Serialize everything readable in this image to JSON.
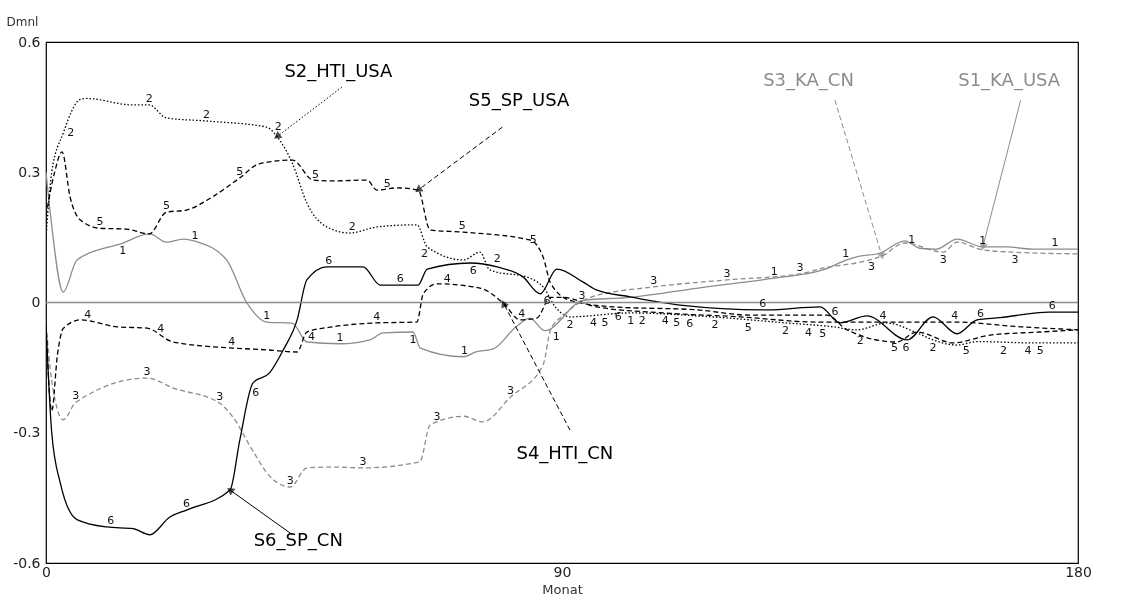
{
  "chart_data": {
    "type": "line",
    "xlabel": "Monat",
    "ylabel": "Dmnl",
    "xlim": [
      0,
      180
    ],
    "xticks": [
      0,
      90,
      180
    ],
    "ylim": [
      -0.6,
      0.6
    ],
    "yticks": [
      -0.6,
      -0.3,
      0,
      0.3,
      0.6
    ],
    "legend": false,
    "grid": false,
    "ref_lines": [
      {
        "axis": "y",
        "value": 0,
        "color": "#8c8c8c"
      }
    ],
    "series": [
      {
        "name": "S1_KA_USA",
        "color": "#8c8c8c",
        "line_style": "solid",
        "x": [
          0,
          0.8,
          3,
          5.4,
          13.4,
          18.1,
          21,
          24,
          26.3,
          31.5,
          35,
          38.5,
          43,
          45.5,
          51.3,
          56.5,
          58.8,
          64,
          65.3,
          72.8,
          75,
          78,
          82,
          84.4,
          87,
          93.7,
          102,
          114.6,
          127,
          135.5,
          139.7,
          141.4,
          145.5,
          149.8,
          152.4,
          155.3,
          158.9,
          163.4,
          167.6,
          172,
          180
        ],
        "values": [
          0.3,
          0.2,
          0.024,
          0.098,
          0.137,
          0.158,
          0.139,
          0.146,
          0.14,
          0.098,
          0.0,
          -0.045,
          -0.048,
          -0.091,
          -0.095,
          -0.086,
          -0.07,
          -0.068,
          -0.105,
          -0.125,
          -0.114,
          -0.107,
          -0.056,
          -0.036,
          -0.065,
          0.005,
          0.012,
          0.035,
          0.056,
          0.075,
          0.098,
          0.105,
          0.114,
          0.142,
          0.125,
          0.123,
          0.146,
          0.128,
          0.128,
          0.123,
          0.123
        ]
      },
      {
        "name": "S2_HTI_USA",
        "color": "#000000",
        "line_style": "dotted",
        "x": [
          0,
          1,
          3,
          6,
          7,
          15.2,
          18,
          21,
          28,
          38.5,
          40.3,
          43,
          45.5,
          49,
          53,
          57.7,
          64.7,
          66.5,
          72.8,
          75.7,
          77.4,
          84.4,
          86.7,
          89,
          91.4,
          102,
          116,
          129,
          137.3,
          141.4,
          146.6,
          151.9,
          154.7,
          158.9,
          162.4,
          172,
          180
        ],
        "values": [
          0.15,
          0.3,
          0.39,
          0.468,
          0.47,
          0.455,
          0.455,
          0.425,
          0.418,
          0.404,
          0.382,
          0.32,
          0.229,
          0.174,
          0.16,
          0.174,
          0.179,
          0.128,
          0.098,
          0.116,
          0.075,
          0.056,
          0.036,
          -0.013,
          -0.033,
          -0.024,
          -0.033,
          -0.047,
          -0.056,
          -0.063,
          -0.047,
          -0.07,
          -0.086,
          -0.098,
          -0.09,
          -0.093,
          -0.093
        ]
      },
      {
        "name": "S3_KA_CN",
        "color": "#8c8c8c",
        "line_style": "dashed",
        "x": [
          0,
          1,
          3,
          5.2,
          17.6,
          22.2,
          30.3,
          32.6,
          36,
          39,
          42.6,
          45.5,
          50,
          55.3,
          65.2,
          67,
          72.8,
          76.2,
          81,
          86.7,
          88,
          90.3,
          95,
          106,
          118.8,
          131.5,
          135.5,
          143.7,
          145.8,
          149.8,
          156.5,
          158.9,
          163.4,
          168.7,
          180
        ],
        "values": [
          -0.05,
          -0.18,
          -0.27,
          -0.23,
          -0.174,
          -0.197,
          -0.232,
          -0.264,
          -0.34,
          -0.4,
          -0.425,
          -0.381,
          -0.379,
          -0.381,
          -0.367,
          -0.282,
          -0.262,
          -0.275,
          -0.218,
          -0.144,
          -0.063,
          -0.029,
          0.012,
          0.036,
          0.052,
          0.066,
          0.079,
          0.098,
          0.107,
          0.137,
          0.116,
          0.139,
          0.121,
          0.116,
          0.112
        ]
      },
      {
        "name": "S4_HTI_CN",
        "color": "#000000",
        "line_style": "dashed",
        "x": [
          0,
          1,
          2,
          3,
          6,
          12.4,
          17.6,
          22.2,
          32.6,
          38.5,
          43.8,
          45.5,
          50,
          57.7,
          64.7,
          65.8,
          68.2,
          75.7,
          79.8,
          82.7,
          85.6,
          88,
          90.2,
          96,
          107.6,
          121,
          134.5,
          149,
          158.2,
          170,
          180
        ],
        "values": [
          -0.05,
          -0.25,
          -0.12,
          -0.06,
          -0.04,
          -0.056,
          -0.059,
          -0.091,
          -0.105,
          -0.109,
          -0.114,
          -0.068,
          -0.056,
          -0.047,
          -0.045,
          0.02,
          0.043,
          0.033,
          -0.002,
          -0.04,
          -0.036,
          0.012,
          0.012,
          -0.01,
          -0.024,
          -0.033,
          -0.045,
          -0.045,
          -0.045,
          -0.056,
          -0.063
        ]
      },
      {
        "name": "S5_SP_USA",
        "color": "#000000",
        "line_style": "dashed",
        "x": [
          0,
          1.5,
          2.8,
          4.2,
          6,
          9.4,
          14,
          18,
          21,
          24.5,
          29,
          33.8,
          37.3,
          43,
          46.6,
          50,
          56,
          57.7,
          61.2,
          64.9,
          67,
          72.8,
          84.4,
          86.7,
          88,
          91.4,
          99,
          113.6,
          122.8,
          136.2,
          139.7,
          148.4,
          151.9,
          158.2,
          164.7,
          173.4,
          180
        ],
        "values": [
          0.2,
          0.3,
          0.347,
          0.243,
          0.19,
          0.171,
          0.169,
          0.158,
          0.208,
          0.213,
          0.243,
          0.287,
          0.32,
          0.328,
          0.282,
          0.28,
          0.282,
          0.259,
          0.264,
          0.259,
          0.167,
          0.162,
          0.144,
          0.105,
          0.045,
          0.005,
          -0.01,
          -0.017,
          -0.029,
          -0.029,
          -0.063,
          -0.091,
          -0.068,
          -0.093,
          -0.075,
          -0.068,
          -0.063
        ]
      },
      {
        "name": "S6_SP_CN",
        "color": "#000000",
        "line_style": "solid",
        "x": [
          0,
          1,
          2.5,
          5.4,
          10.6,
          15.2,
          18.1,
          21.6,
          24.5,
          32.1,
          33.8,
          36.1,
          39,
          41.4,
          43.8,
          45.5,
          49,
          55.3,
          58.3,
          64.9,
          66.5,
          74,
          78.7,
          83.2,
          86.2,
          89.1,
          93.7,
          96,
          101.9,
          110.6,
          125.8,
          135,
          138.5,
          143.2,
          150.2,
          154.7,
          158.9,
          162.4,
          166.4,
          175,
          180
        ],
        "values": [
          -0.05,
          -0.3,
          -0.416,
          -0.5,
          -0.517,
          -0.521,
          -0.535,
          -0.494,
          -0.478,
          -0.432,
          -0.317,
          -0.185,
          -0.162,
          -0.109,
          -0.04,
          0.052,
          0.082,
          0.082,
          0.04,
          0.04,
          0.077,
          0.091,
          0.082,
          0.059,
          0.02,
          0.077,
          0.047,
          0.029,
          0.013,
          -0.006,
          -0.017,
          -0.01,
          -0.047,
          -0.031,
          -0.086,
          -0.033,
          -0.072,
          -0.04,
          -0.035,
          -0.022,
          -0.022
        ]
      }
    ],
    "annotations": [
      {
        "text": "1",
        "x": 13.4,
        "y": 0.137
      },
      {
        "text": "1",
        "x": 26,
        "y": 0.14
      },
      {
        "text": "1",
        "x": 38.5,
        "y": -0.046
      },
      {
        "text": "1",
        "x": 51.3,
        "y": -0.095
      },
      {
        "text": "1",
        "x": 64,
        "y": -0.068
      },
      {
        "text": "1",
        "x": 73,
        "y": -0.125
      },
      {
        "text": "1",
        "x": 89,
        "y": -0.06
      },
      {
        "text": "1",
        "x": 102,
        "y": 0.012
      },
      {
        "text": "1",
        "x": 127,
        "y": 0.056
      },
      {
        "text": "1",
        "x": 139.5,
        "y": 0.098
      },
      {
        "text": "1",
        "x": 151,
        "y": 0.13
      },
      {
        "text": "1",
        "x": 163.4,
        "y": 0.128
      },
      {
        "text": "1",
        "x": 176,
        "y": 0.123
      },
      {
        "text": "2",
        "x": 3,
        "y": 0.39
      },
      {
        "text": "2",
        "x": 18,
        "y": 0.455
      },
      {
        "text": "2",
        "x": 28,
        "y": 0.418
      },
      {
        "text": "2",
        "x": 40.5,
        "y": 0.39
      },
      {
        "text": "2",
        "x": 53.4,
        "y": 0.16
      },
      {
        "text": "2",
        "x": 66,
        "y": 0.13
      },
      {
        "text": "2",
        "x": 78.7,
        "y": 0.086
      },
      {
        "text": "2",
        "x": 91.4,
        "y": -0.033
      },
      {
        "text": "2",
        "x": 104,
        "y": -0.024
      },
      {
        "text": "2",
        "x": 116.7,
        "y": -0.033
      },
      {
        "text": "2",
        "x": 129,
        "y": -0.047
      },
      {
        "text": "2",
        "x": 142,
        "y": -0.06
      },
      {
        "text": "2",
        "x": 154.7,
        "y": -0.086
      },
      {
        "text": "2",
        "x": 167,
        "y": -0.093
      },
      {
        "text": "3",
        "x": 5.2,
        "y": -0.23
      },
      {
        "text": "3",
        "x": 17.6,
        "y": -0.174
      },
      {
        "text": "3",
        "x": 30.3,
        "y": -0.232
      },
      {
        "text": "3",
        "x": 42.6,
        "y": -0.425
      },
      {
        "text": "3",
        "x": 55.3,
        "y": -0.381
      },
      {
        "text": "3",
        "x": 68.2,
        "y": -0.278
      },
      {
        "text": "3",
        "x": 81,
        "y": -0.218
      },
      {
        "text": "3",
        "x": 93.5,
        "y": 0.002
      },
      {
        "text": "3",
        "x": 106,
        "y": 0.036
      },
      {
        "text": "3",
        "x": 118.8,
        "y": 0.052
      },
      {
        "text": "3",
        "x": 131.5,
        "y": 0.066
      },
      {
        "text": "3",
        "x": 144,
        "y": 0.1
      },
      {
        "text": "3",
        "x": 156.5,
        "y": 0.116
      },
      {
        "text": "3",
        "x": 169,
        "y": 0.116
      },
      {
        "text": "4",
        "x": 7.3,
        "y": -0.042
      },
      {
        "text": "4",
        "x": 20,
        "y": -0.075
      },
      {
        "text": "4",
        "x": 32.4,
        "y": -0.105
      },
      {
        "text": "4",
        "x": 45,
        "y": -0.08
      },
      {
        "text": "4",
        "x": 57.7,
        "y": -0.047
      },
      {
        "text": "4",
        "x": 70,
        "y": 0.04
      },
      {
        "text": "4",
        "x": 83,
        "y": -0.04
      },
      {
        "text": "4",
        "x": 95.5,
        "y": -0.008
      },
      {
        "text": "4",
        "x": 108,
        "y": -0.024
      },
      {
        "text": "4",
        "x": 133,
        "y": -0.045
      },
      {
        "text": "4",
        "x": 146,
        "y": -0.045
      },
      {
        "text": "4",
        "x": 158.5,
        "y": -0.045
      },
      {
        "text": "4",
        "x": 171.3,
        "y": -0.058
      },
      {
        "text": "5",
        "x": 9.4,
        "y": 0.171
      },
      {
        "text": "5",
        "x": 21,
        "y": 0.208
      },
      {
        "text": "5",
        "x": 33.8,
        "y": 0.287
      },
      {
        "text": "5",
        "x": 47,
        "y": 0.28
      },
      {
        "text": "5",
        "x": 59.5,
        "y": 0.26
      },
      {
        "text": "5",
        "x": 72.6,
        "y": 0.162
      },
      {
        "text": "5",
        "x": 85,
        "y": 0.13
      },
      {
        "text": "5",
        "x": 97.5,
        "y": -0.008
      },
      {
        "text": "5",
        "x": 110,
        "y": -0.015
      },
      {
        "text": "5",
        "x": 122.5,
        "y": -0.029
      },
      {
        "text": "5",
        "x": 135.5,
        "y": -0.029
      },
      {
        "text": "5",
        "x": 148,
        "y": -0.086
      },
      {
        "text": "5",
        "x": 160.5,
        "y": -0.085
      },
      {
        "text": "5",
        "x": 173.4,
        "y": -0.068
      },
      {
        "text": "6",
        "x": 11.3,
        "y": -0.517
      },
      {
        "text": "6",
        "x": 24.5,
        "y": -0.478
      },
      {
        "text": "6",
        "x": 36.6,
        "y": -0.19
      },
      {
        "text": "6",
        "x": 49.3,
        "y": 0.082
      },
      {
        "text": "6",
        "x": 61.8,
        "y": 0.04
      },
      {
        "text": "6",
        "x": 74.5,
        "y": 0.091
      },
      {
        "text": "6",
        "x": 87.4,
        "y": 0.05
      },
      {
        "text": "6",
        "x": 99.8,
        "y": 0.016
      },
      {
        "text": "6",
        "x": 112.3,
        "y": -0.006
      },
      {
        "text": "6",
        "x": 125,
        "y": -0.017
      },
      {
        "text": "6",
        "x": 137.6,
        "y": -0.035
      },
      {
        "text": "6",
        "x": 150,
        "y": -0.086
      },
      {
        "text": "6",
        "x": 163,
        "y": -0.04
      },
      {
        "text": "6",
        "x": 175.5,
        "y": -0.022
      }
    ]
  }
}
